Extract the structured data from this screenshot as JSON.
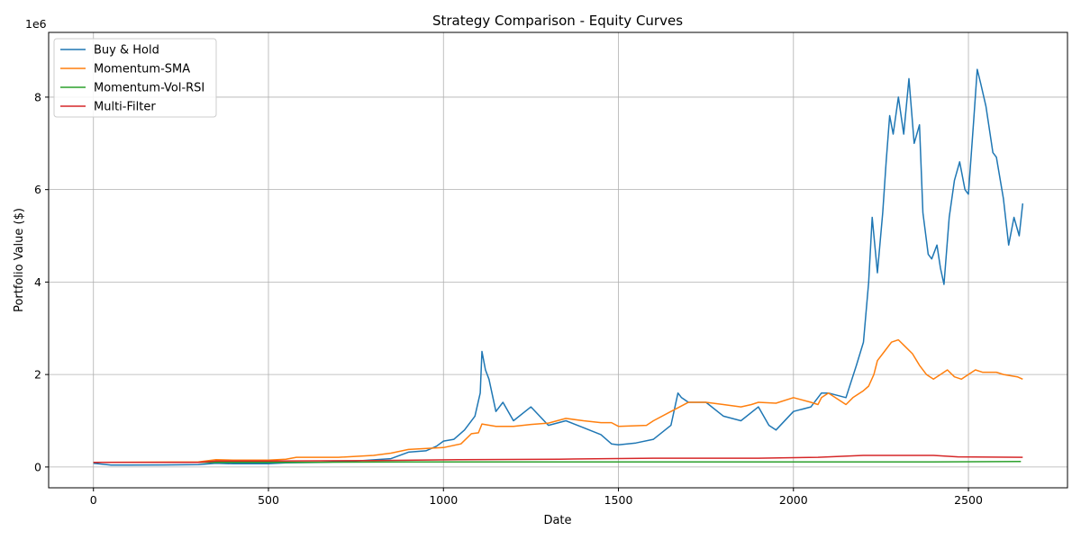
{
  "chart_data": {
    "type": "line",
    "title": "Strategy Comparison - Equity Curves",
    "xlabel": "Date",
    "ylabel": "Portfolio Value ($)",
    "y_offset_text": "1e6",
    "xlim": [
      -128,
      2783
    ],
    "ylim": [
      -450000,
      9400000
    ],
    "xticks": [
      0,
      500,
      1000,
      1500,
      2000,
      2500
    ],
    "yticks": [
      0,
      2000000,
      4000000,
      6000000,
      8000000
    ],
    "ytick_labels": [
      "0",
      "2",
      "4",
      "6",
      "8"
    ],
    "grid": true,
    "legend_position": "top-left",
    "series": [
      {
        "name": "Buy & Hold",
        "color": "#1f77b4",
        "points": [
          [
            0,
            80000
          ],
          [
            50,
            40000
          ],
          [
            100,
            40000
          ],
          [
            200,
            45000
          ],
          [
            300,
            50000
          ],
          [
            350,
            80000
          ],
          [
            400,
            70000
          ],
          [
            500,
            70000
          ],
          [
            550,
            90000
          ],
          [
            650,
            100000
          ],
          [
            750,
            130000
          ],
          [
            850,
            180000
          ],
          [
            900,
            320000
          ],
          [
            950,
            350000
          ],
          [
            980,
            450000
          ],
          [
            1000,
            560000
          ],
          [
            1030,
            600000
          ],
          [
            1060,
            800000
          ],
          [
            1090,
            1100000
          ],
          [
            1105,
            1600000
          ],
          [
            1110,
            2500000
          ],
          [
            1120,
            2100000
          ],
          [
            1130,
            1900000
          ],
          [
            1150,
            1200000
          ],
          [
            1170,
            1400000
          ],
          [
            1200,
            1000000
          ],
          [
            1250,
            1300000
          ],
          [
            1300,
            900000
          ],
          [
            1350,
            1000000
          ],
          [
            1400,
            850000
          ],
          [
            1450,
            700000
          ],
          [
            1480,
            500000
          ],
          [
            1500,
            480000
          ],
          [
            1550,
            520000
          ],
          [
            1600,
            600000
          ],
          [
            1650,
            900000
          ],
          [
            1670,
            1600000
          ],
          [
            1680,
            1500000
          ],
          [
            1700,
            1400000
          ],
          [
            1750,
            1400000
          ],
          [
            1800,
            1100000
          ],
          [
            1850,
            1000000
          ],
          [
            1900,
            1300000
          ],
          [
            1930,
            900000
          ],
          [
            1950,
            800000
          ],
          [
            2000,
            1200000
          ],
          [
            2050,
            1300000
          ],
          [
            2080,
            1600000
          ],
          [
            2100,
            1600000
          ],
          [
            2150,
            1500000
          ],
          [
            2180,
            2200000
          ],
          [
            2200,
            2700000
          ],
          [
            2215,
            4000000
          ],
          [
            2225,
            5400000
          ],
          [
            2240,
            4200000
          ],
          [
            2255,
            5500000
          ],
          [
            2265,
            6600000
          ],
          [
            2275,
            7600000
          ],
          [
            2285,
            7200000
          ],
          [
            2300,
            8000000
          ],
          [
            2315,
            7200000
          ],
          [
            2330,
            8400000
          ],
          [
            2345,
            7000000
          ],
          [
            2360,
            7400000
          ],
          [
            2370,
            5500000
          ],
          [
            2385,
            4600000
          ],
          [
            2395,
            4500000
          ],
          [
            2410,
            4800000
          ],
          [
            2420,
            4300000
          ],
          [
            2430,
            3950000
          ],
          [
            2445,
            5400000
          ],
          [
            2460,
            6200000
          ],
          [
            2475,
            6600000
          ],
          [
            2490,
            6000000
          ],
          [
            2500,
            5900000
          ],
          [
            2515,
            7500000
          ],
          [
            2525,
            8600000
          ],
          [
            2535,
            8300000
          ],
          [
            2550,
            7800000
          ],
          [
            2570,
            6800000
          ],
          [
            2580,
            6700000
          ],
          [
            2600,
            5800000
          ],
          [
            2615,
            4800000
          ],
          [
            2630,
            5400000
          ],
          [
            2645,
            5000000
          ],
          [
            2655,
            5700000
          ]
        ]
      },
      {
        "name": "Momentum-SMA",
        "color": "#ff7f0e",
        "points": [
          [
            0,
            100000
          ],
          [
            300,
            110000
          ],
          [
            350,
            160000
          ],
          [
            400,
            150000
          ],
          [
            500,
            150000
          ],
          [
            550,
            170000
          ],
          [
            580,
            210000
          ],
          [
            700,
            210000
          ],
          [
            800,
            250000
          ],
          [
            850,
            300000
          ],
          [
            900,
            380000
          ],
          [
            1000,
            420000
          ],
          [
            1050,
            500000
          ],
          [
            1080,
            720000
          ],
          [
            1100,
            740000
          ],
          [
            1110,
            930000
          ],
          [
            1150,
            880000
          ],
          [
            1200,
            880000
          ],
          [
            1250,
            920000
          ],
          [
            1300,
            950000
          ],
          [
            1350,
            1050000
          ],
          [
            1400,
            1000000
          ],
          [
            1450,
            960000
          ],
          [
            1480,
            960000
          ],
          [
            1500,
            880000
          ],
          [
            1580,
            900000
          ],
          [
            1600,
            1000000
          ],
          [
            1650,
            1200000
          ],
          [
            1700,
            1400000
          ],
          [
            1750,
            1400000
          ],
          [
            1800,
            1350000
          ],
          [
            1850,
            1300000
          ],
          [
            1880,
            1350000
          ],
          [
            1900,
            1400000
          ],
          [
            1950,
            1380000
          ],
          [
            2000,
            1500000
          ],
          [
            2050,
            1400000
          ],
          [
            2070,
            1350000
          ],
          [
            2080,
            1500000
          ],
          [
            2100,
            1600000
          ],
          [
            2150,
            1350000
          ],
          [
            2170,
            1500000
          ],
          [
            2200,
            1650000
          ],
          [
            2215,
            1750000
          ],
          [
            2230,
            2000000
          ],
          [
            2240,
            2300000
          ],
          [
            2260,
            2500000
          ],
          [
            2280,
            2700000
          ],
          [
            2300,
            2750000
          ],
          [
            2320,
            2600000
          ],
          [
            2340,
            2450000
          ],
          [
            2360,
            2200000
          ],
          [
            2380,
            2000000
          ],
          [
            2400,
            1900000
          ],
          [
            2420,
            2000000
          ],
          [
            2440,
            2100000
          ],
          [
            2460,
            1950000
          ],
          [
            2480,
            1900000
          ],
          [
            2500,
            2000000
          ],
          [
            2520,
            2100000
          ],
          [
            2540,
            2050000
          ],
          [
            2580,
            2050000
          ],
          [
            2600,
            2000000
          ],
          [
            2640,
            1950000
          ],
          [
            2655,
            1900000
          ]
        ]
      },
      {
        "name": "Momentum-Vol-RSI",
        "color": "#2ca02c",
        "points": [
          [
            0,
            100000
          ],
          [
            300,
            100000
          ],
          [
            600,
            100000
          ],
          [
            900,
            110000
          ],
          [
            1200,
            110000
          ],
          [
            1500,
            110000
          ],
          [
            1800,
            110000
          ],
          [
            2100,
            110000
          ],
          [
            2400,
            110000
          ],
          [
            2650,
            120000
          ]
        ]
      },
      {
        "name": "Multi-Filter",
        "color": "#d62728",
        "points": [
          [
            0,
            100000
          ],
          [
            300,
            100000
          ],
          [
            350,
            130000
          ],
          [
            500,
            130000
          ],
          [
            800,
            140000
          ],
          [
            1050,
            160000
          ],
          [
            1330,
            170000
          ],
          [
            1600,
            190000
          ],
          [
            1900,
            190000
          ],
          [
            2070,
            210000
          ],
          [
            2200,
            250000
          ],
          [
            2400,
            250000
          ],
          [
            2470,
            220000
          ],
          [
            2655,
            210000
          ]
        ]
      }
    ]
  }
}
